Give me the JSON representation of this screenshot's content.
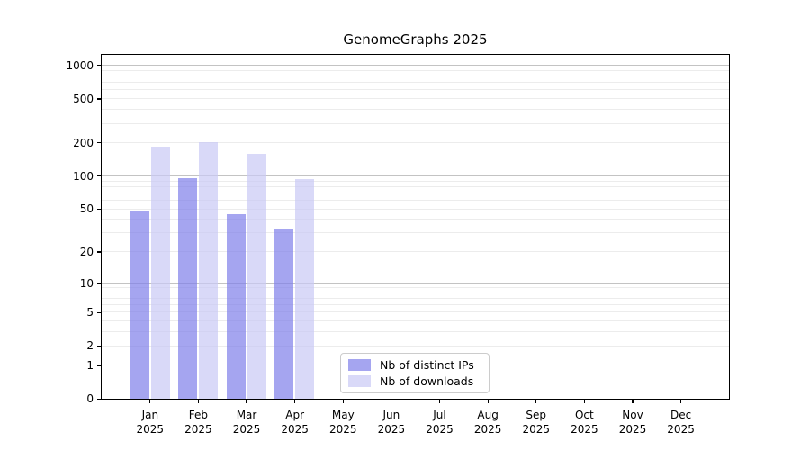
{
  "chart_data": {
    "type": "bar",
    "title": "GenomeGraphs 2025",
    "categories": [
      "Jan 2025",
      "Feb 2025",
      "Mar 2025",
      "Apr 2025",
      "May 2025",
      "Jun 2025",
      "Jul 2025",
      "Aug 2025",
      "Sep 2025",
      "Oct 2025",
      "Nov 2025",
      "Dec 2025"
    ],
    "series": [
      {
        "name": "Nb of distinct IPs",
        "color": "rgba(127,127,233,0.7)",
        "values": [
          47,
          96,
          45,
          33,
          0,
          0,
          0,
          0,
          0,
          0,
          0,
          0
        ]
      },
      {
        "name": "Nb of downloads",
        "color": "rgba(201,201,245,0.7)",
        "values": [
          185,
          204,
          160,
          94,
          0,
          0,
          0,
          0,
          0,
          0,
          0,
          0
        ]
      }
    ],
    "xlabel": "",
    "ylabel": "",
    "yscale": "log1p",
    "ylim": [
      0,
      1243
    ],
    "yticks": [
      0,
      1,
      2,
      5,
      10,
      20,
      50,
      100,
      200,
      500,
      1000
    ],
    "grid": {
      "on": true,
      "major_color": "#c3c3c3",
      "minor_color": "#ececec"
    },
    "legend": {
      "position": "lower center",
      "border_color": "#cccccc"
    }
  }
}
